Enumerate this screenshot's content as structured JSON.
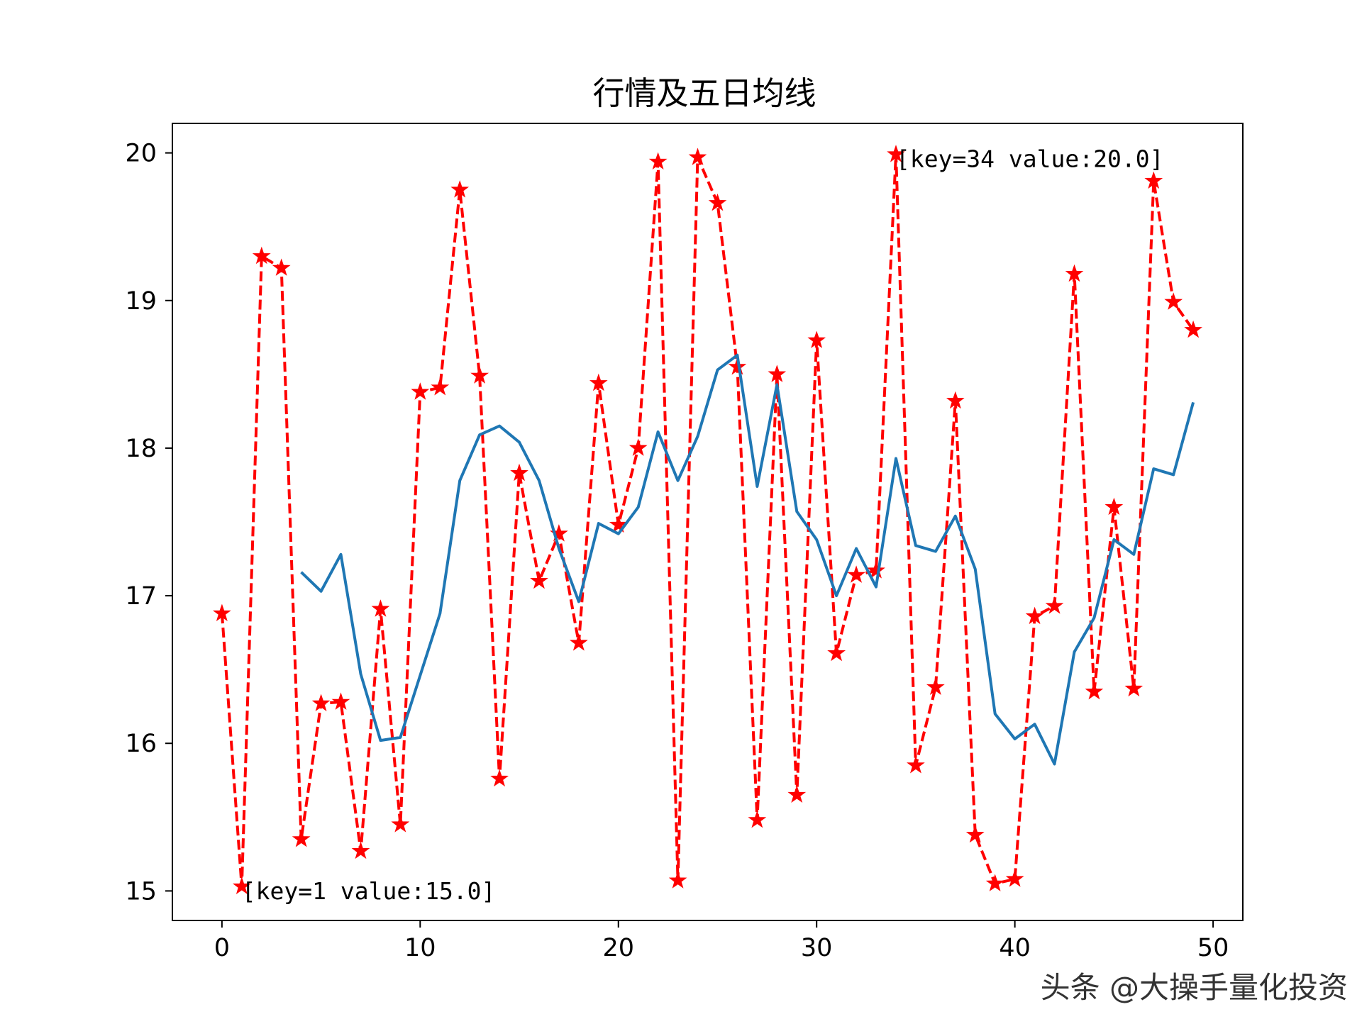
{
  "chart_data": {
    "type": "line",
    "title": "行情及五日均线",
    "xlabel": "",
    "ylabel": "",
    "xlim": [
      -2.5,
      51.5
    ],
    "ylim": [
      14.8,
      20.2
    ],
    "xticks": [
      0,
      10,
      20,
      30,
      40,
      50
    ],
    "xtick_labels": [
      "0",
      "10",
      "20",
      "30",
      "40",
      "50"
    ],
    "yticks": [
      15,
      16,
      17,
      18,
      19,
      20
    ],
    "ytick_labels": [
      "15",
      "16",
      "17",
      "18",
      "19",
      "20"
    ],
    "grid": false,
    "legend": "none",
    "series": [
      {
        "style": "dashed-star",
        "color": "#ff0000",
        "x": [
          0,
          1,
          2,
          3,
          4,
          5,
          6,
          7,
          8,
          9,
          10,
          11,
          12,
          13,
          14,
          15,
          16,
          17,
          18,
          19,
          20,
          21,
          22,
          23,
          24,
          25,
          26,
          27,
          28,
          29,
          30,
          31,
          32,
          33,
          34,
          35,
          36,
          37,
          38,
          39,
          40,
          41,
          42,
          43,
          44,
          45,
          46,
          47,
          48,
          49
        ],
        "values": [
          16.88,
          15.03,
          19.3,
          19.22,
          15.35,
          16.27,
          16.28,
          15.27,
          16.91,
          15.45,
          18.38,
          18.41,
          19.75,
          18.49,
          15.76,
          17.83,
          17.1,
          17.42,
          16.68,
          18.44,
          17.48,
          18.0,
          19.94,
          15.07,
          19.97,
          19.66,
          18.55,
          15.48,
          18.5,
          15.65,
          18.73,
          16.61,
          17.14,
          17.17,
          19.99,
          15.85,
          16.38,
          18.32,
          15.38,
          15.05,
          15.08,
          16.86,
          16.93,
          19.18,
          16.35,
          17.6,
          16.37,
          19.81,
          18.99,
          18.8
        ]
      },
      {
        "style": "solid",
        "color": "#1f77b4",
        "x": [
          4,
          5,
          6,
          7,
          8,
          9,
          10,
          11,
          12,
          13,
          14,
          15,
          16,
          17,
          18,
          19,
          20,
          21,
          22,
          23,
          24,
          25,
          26,
          27,
          28,
          29,
          30,
          31,
          32,
          33,
          34,
          35,
          36,
          37,
          38,
          39,
          40,
          41,
          42,
          43,
          44,
          45,
          46,
          47,
          48,
          49
        ],
        "values": [
          17.16,
          17.03,
          17.28,
          16.47,
          16.02,
          16.04,
          16.46,
          16.88,
          17.78,
          18.09,
          18.15,
          18.04,
          17.78,
          17.32,
          16.96,
          17.49,
          17.42,
          17.6,
          18.11,
          17.78,
          18.08,
          18.53,
          18.63,
          17.74,
          18.43,
          17.57,
          17.38,
          17.0,
          17.32,
          17.06,
          17.93,
          17.34,
          17.3,
          17.54,
          17.18,
          16.2,
          16.03,
          16.13,
          15.86,
          16.62,
          16.85,
          17.38,
          17.28,
          17.86,
          17.82,
          18.31
        ]
      }
    ],
    "annotations": [
      {
        "x": 1,
        "y": 15.03,
        "text": "[key=1 value:15.0]"
      },
      {
        "x": 34,
        "y": 19.99,
        "text": "[key=34 value:20.0]"
      }
    ]
  },
  "colors": {
    "price_line": "#ff0000",
    "ma_line": "#1f77b4",
    "axes": "#000000"
  },
  "watermark": "头条 @大操手量化投资"
}
